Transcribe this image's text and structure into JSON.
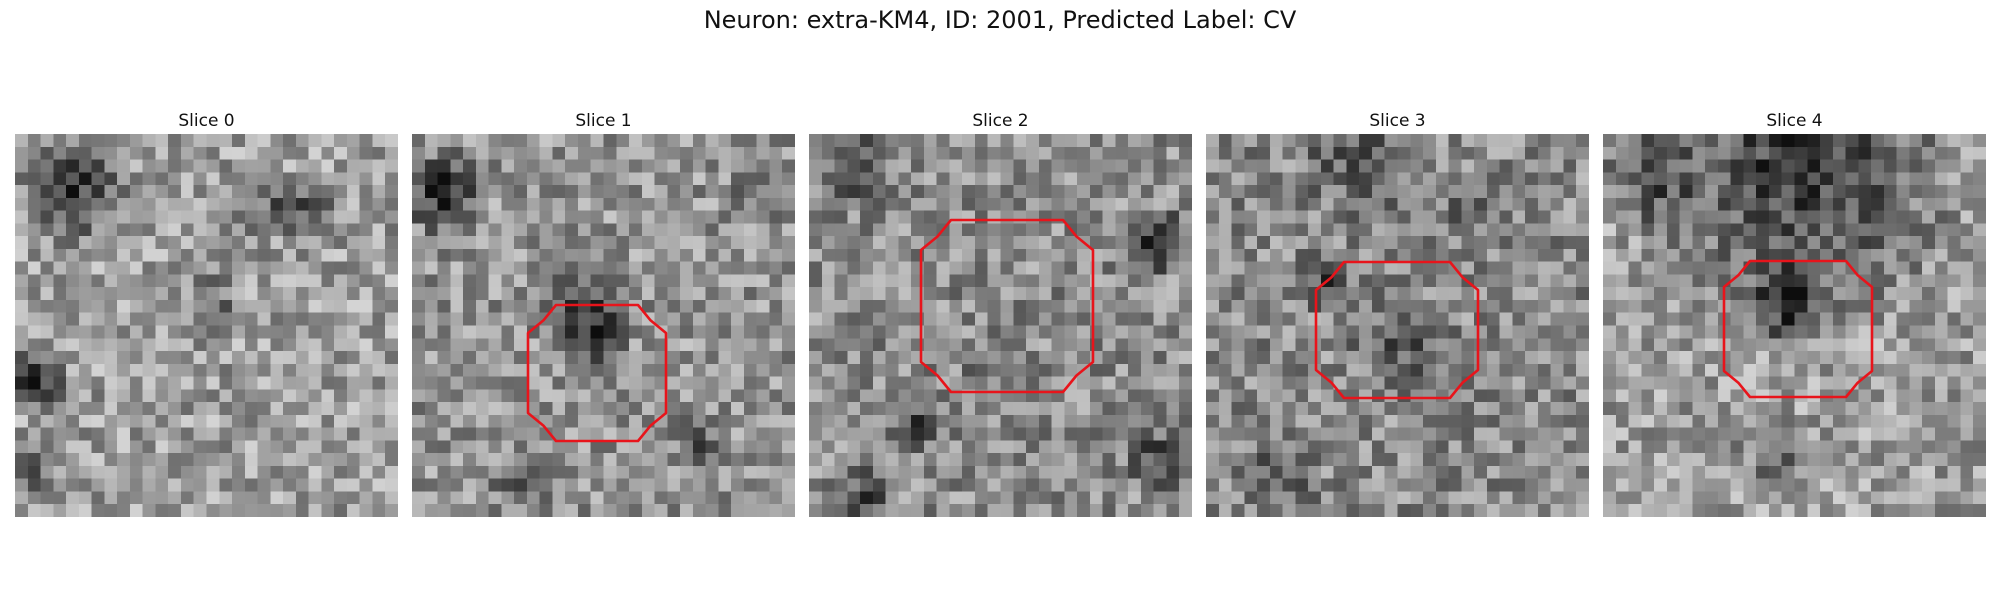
{
  "figure": {
    "title": "Neuron: extra-KM4, ID: 2001, Predicted Label: CV"
  },
  "panels": [
    {
      "title": "Slice 0",
      "has_contour": false
    },
    {
      "title": "Slice 1",
      "has_contour": true
    },
    {
      "title": "Slice 2",
      "has_contour": true
    },
    {
      "title": "Slice 3",
      "has_contour": true
    },
    {
      "title": "Slice 4",
      "has_contour": true
    }
  ],
  "colors": {
    "contour": "#e8141b",
    "background": "#ffffff"
  }
}
